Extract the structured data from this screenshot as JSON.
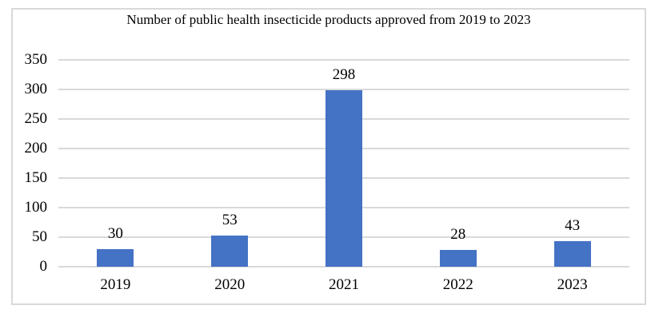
{
  "chart_data": {
    "type": "bar",
    "title": "Number of public health insecticide products approved from 2019 to 2023",
    "categories": [
      "2019",
      "2020",
      "2021",
      "2022",
      "2023"
    ],
    "values": [
      30,
      53,
      298,
      28,
      43
    ],
    "data_labels": [
      "30",
      "53",
      "298",
      "28",
      "43"
    ],
    "xlabel": "",
    "ylabel": "",
    "ylim": [
      0,
      350
    ],
    "ytick_step": 50,
    "ytick_labels": [
      "0",
      "50",
      "100",
      "150",
      "200",
      "250",
      "300",
      "350"
    ],
    "grid": true,
    "legend_position": "none",
    "data_labels_visible": true,
    "colors": {
      "bar": "#4472C4",
      "gridline": "#D9D9D9",
      "frame_border": "#D9D9D9",
      "text": "#000000",
      "background": "#FFFFFF"
    }
  }
}
